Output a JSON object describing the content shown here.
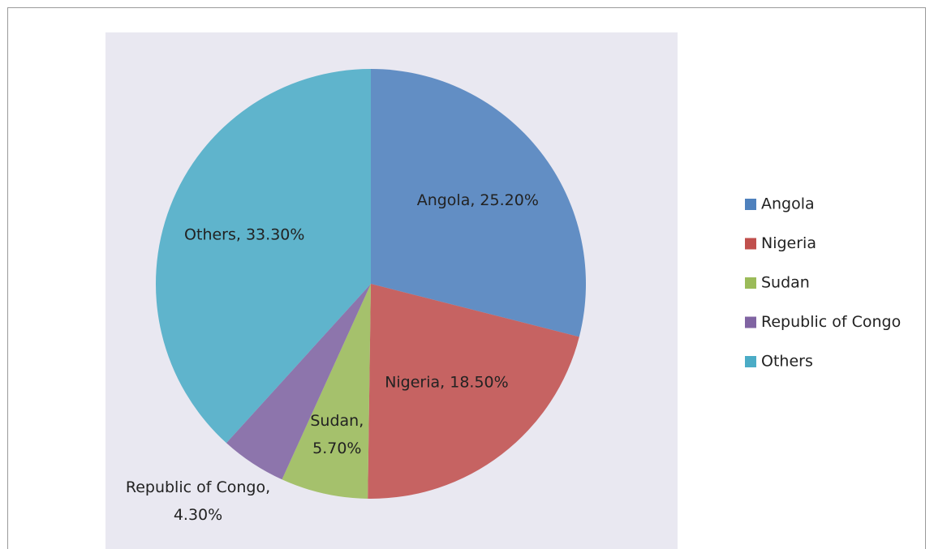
{
  "chart_data": {
    "type": "pie",
    "categories": [
      "Angola",
      "Nigeria",
      "Sudan",
      "Republic of Congo",
      "Others"
    ],
    "values": [
      25.2,
      18.5,
      5.7,
      4.3,
      33.3
    ],
    "value_labels": [
      "Angola, 25.20%",
      "Nigeria, 18.50%",
      "Sudan, 5.70%",
      "Republic of Congo, 4.30%",
      "Others, 33.30%"
    ],
    "colors": [
      "#4f81bd",
      "#c0504d",
      "#9bbb59",
      "#8064a2",
      "#4bacc6"
    ],
    "legend": "right"
  }
}
